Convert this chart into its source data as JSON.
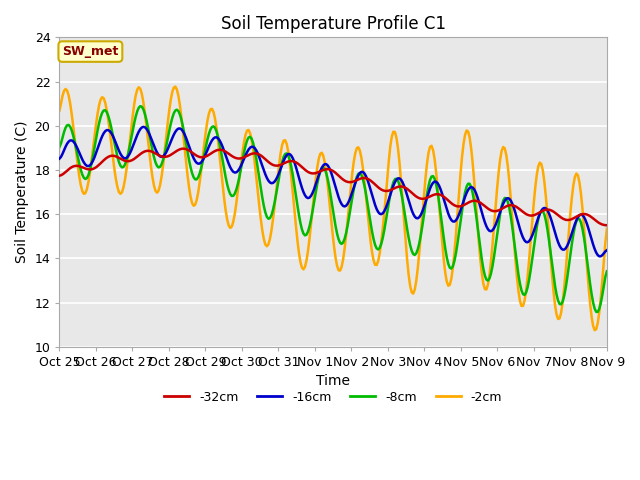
{
  "title": "Soil Temperature Profile C1",
  "xlabel": "Time",
  "ylabel": "Soil Temperature (C)",
  "ylim": [
    10,
    24
  ],
  "yticks": [
    10,
    12,
    14,
    16,
    18,
    20,
    22,
    24
  ],
  "background_color": "#ffffff",
  "plot_bg_color": "#e8e8e8",
  "annotation_text": "SW_met",
  "annotation_bg": "#ffffcc",
  "annotation_border": "#ccaa00",
  "annotation_text_color": "#880000",
  "series": {
    "-32cm": {
      "color": "#cc0000",
      "lw": 1.8
    },
    "-16cm": {
      "color": "#0000cc",
      "lw": 1.8
    },
    "-8cm": {
      "color": "#00bb00",
      "lw": 1.8
    },
    "-2cm": {
      "color": "#ffaa00",
      "lw": 1.8
    }
  },
  "xtick_labels": [
    "Oct 25",
    "Oct 26",
    "Oct 27",
    "Oct 28",
    "Oct 29",
    "Oct 30",
    "Oct 31",
    "Nov 1",
    "Nov 2",
    "Nov 3",
    "Nov 4",
    "Nov 5",
    "Nov 6",
    "Nov 7",
    "Nov 8",
    "Nov 9"
  ],
  "num_points": 360,
  "time_days": 15
}
